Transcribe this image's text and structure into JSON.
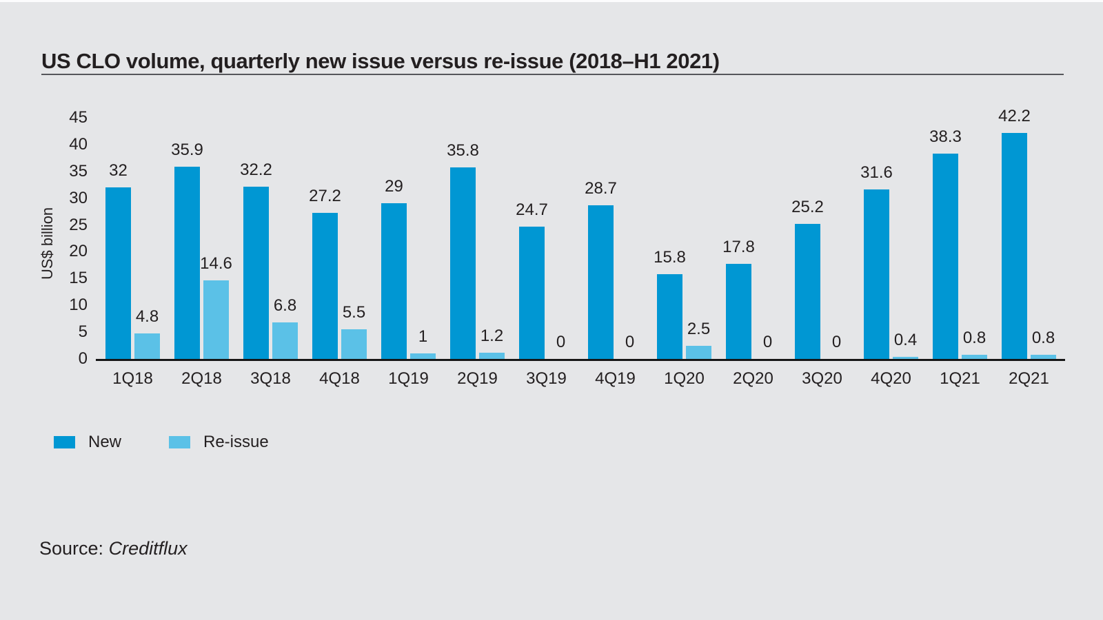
{
  "page": {
    "background_color": "#e5e6e8",
    "text_color": "#231f20"
  },
  "header": {
    "title": "US CLO volume, quarterly new issue versus re-issue (2018–H1 2021)"
  },
  "chart_data": {
    "type": "bar",
    "title": "US CLO volume, quarterly new issue versus re-issue (2018–H1 2021)",
    "xlabel": "",
    "ylabel": "US$ billion",
    "ylim": [
      0,
      45
    ],
    "yticks": [
      0,
      5,
      10,
      15,
      20,
      25,
      30,
      35,
      40,
      45
    ],
    "grid": false,
    "data_labels": true,
    "legend_position": "bottom-left",
    "categories": [
      "1Q18",
      "2Q18",
      "3Q18",
      "4Q18",
      "1Q19",
      "2Q19",
      "3Q19",
      "4Q19",
      "1Q20",
      "2Q20",
      "3Q20",
      "4Q20",
      "1Q21",
      "2Q21"
    ],
    "series": [
      {
        "name": "New",
        "color": "#0097d3",
        "values": [
          32,
          35.9,
          32.2,
          27.2,
          29,
          35.8,
          24.7,
          28.7,
          15.8,
          17.8,
          25.2,
          31.6,
          38.3,
          42.2
        ]
      },
      {
        "name": "Re-issue",
        "color": "#5bc1e7",
        "values": [
          4.8,
          14.6,
          6.8,
          5.5,
          1,
          1.2,
          0,
          0,
          2.5,
          0,
          0,
          0.4,
          0.8,
          0.8
        ]
      }
    ]
  },
  "footer": {
    "source_label": "Source:",
    "source_name": "Creditflux"
  }
}
